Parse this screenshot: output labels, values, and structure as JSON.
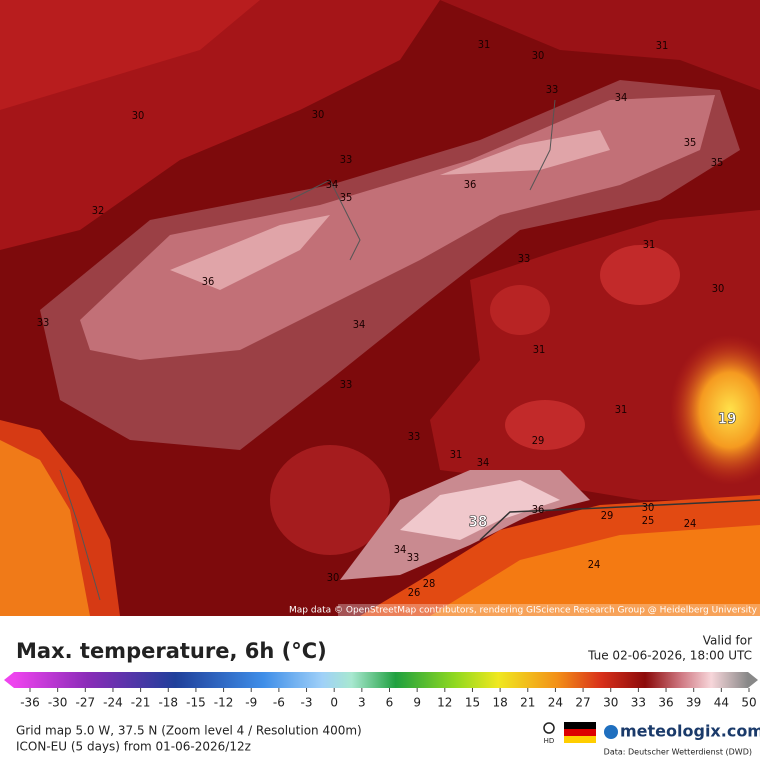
{
  "map": {
    "labels": [
      31,
      30,
      31,
      33,
      34,
      30,
      30,
      35,
      35,
      33,
      34,
      35,
      36,
      32,
      31,
      33,
      36,
      30,
      33,
      34,
      31,
      33,
      31,
      29,
      33,
      31,
      34,
      19,
      38,
      36,
      29,
      30,
      25,
      24,
      34,
      33,
      30,
      28,
      26,
      24
    ],
    "attribution": "Map data © OpenStreetMap contributors, rendering GIScience Research Group @ Heidelberg University"
  },
  "header": {
    "title": "Max. temperature, 6h (°C)",
    "valid_label": "Valid for",
    "valid_time": "Tue 02-06-2026, 18:00 UTC"
  },
  "legend": {
    "ticks": [
      -36,
      -30,
      -27,
      -24,
      -21,
      -18,
      -15,
      -12,
      -9,
      -6,
      -3,
      0,
      3,
      6,
      9,
      12,
      15,
      18,
      21,
      24,
      27,
      30,
      33,
      36,
      39,
      44,
      50
    ]
  },
  "footer": {
    "grid": "Grid map 5.0 W, 37.5 N (Zoom level 4 / Resolution 400m)",
    "model": "ICON-EU (5 days) from 01-06-2026/12z",
    "hd": "HD",
    "brand": "meteologix.com",
    "source": "Data: Deutscher Wetterdienst (DWD)"
  }
}
